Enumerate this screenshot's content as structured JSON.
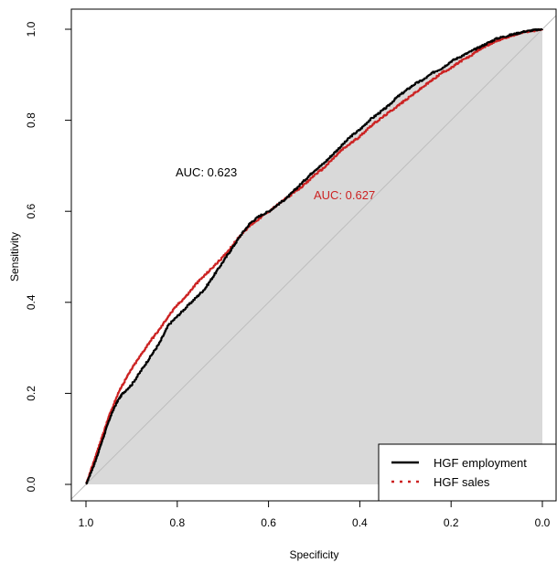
{
  "chart_data": {
    "type": "line",
    "title": "",
    "xlabel": "Specificity",
    "ylabel": "Sensitivity",
    "x_reversed": true,
    "xlim": [
      1.0,
      0.0
    ],
    "ylim": [
      0.0,
      1.0
    ],
    "x_ticks": [
      "1.0",
      "0.8",
      "0.6",
      "0.4",
      "0.2",
      "0.0"
    ],
    "y_ticks": [
      "0.0",
      "0.2",
      "0.4",
      "0.6",
      "0.8",
      "1.0"
    ],
    "grid": false,
    "legend_position": "bottom-right",
    "diagonal_reference_line": true,
    "shaded_auc": true,
    "series": [
      {
        "name": "HGF employment",
        "color": "#000000",
        "line": "solid",
        "auc_label": "AUC: 0.623",
        "points": [
          [
            1.0,
            0.0
          ],
          [
            0.99,
            0.025
          ],
          [
            0.98,
            0.05
          ],
          [
            0.97,
            0.08
          ],
          [
            0.96,
            0.11
          ],
          [
            0.95,
            0.14
          ],
          [
            0.94,
            0.165
          ],
          [
            0.93,
            0.185
          ],
          [
            0.92,
            0.2
          ],
          [
            0.9,
            0.22
          ],
          [
            0.88,
            0.25
          ],
          [
            0.86,
            0.28
          ],
          [
            0.84,
            0.31
          ],
          [
            0.82,
            0.35
          ],
          [
            0.8,
            0.37
          ],
          [
            0.78,
            0.39
          ],
          [
            0.76,
            0.41
          ],
          [
            0.74,
            0.43
          ],
          [
            0.72,
            0.46
          ],
          [
            0.7,
            0.49
          ],
          [
            0.68,
            0.52
          ],
          [
            0.66,
            0.55
          ],
          [
            0.64,
            0.575
          ],
          [
            0.62,
            0.59
          ],
          [
            0.6,
            0.6
          ],
          [
            0.58,
            0.615
          ],
          [
            0.56,
            0.63
          ],
          [
            0.54,
            0.65
          ],
          [
            0.52,
            0.67
          ],
          [
            0.5,
            0.69
          ],
          [
            0.48,
            0.705
          ],
          [
            0.46,
            0.725
          ],
          [
            0.44,
            0.745
          ],
          [
            0.42,
            0.765
          ],
          [
            0.4,
            0.78
          ],
          [
            0.38,
            0.8
          ],
          [
            0.36,
            0.815
          ],
          [
            0.34,
            0.83
          ],
          [
            0.32,
            0.85
          ],
          [
            0.3,
            0.865
          ],
          [
            0.28,
            0.88
          ],
          [
            0.26,
            0.89
          ],
          [
            0.24,
            0.905
          ],
          [
            0.22,
            0.915
          ],
          [
            0.2,
            0.93
          ],
          [
            0.18,
            0.94
          ],
          [
            0.16,
            0.95
          ],
          [
            0.14,
            0.96
          ],
          [
            0.12,
            0.97
          ],
          [
            0.1,
            0.98
          ],
          [
            0.08,
            0.985
          ],
          [
            0.06,
            0.99
          ],
          [
            0.04,
            0.995
          ],
          [
            0.02,
            0.998
          ],
          [
            0.0,
            1.0
          ]
        ]
      },
      {
        "name": "HGF sales",
        "color": "#cc2222",
        "line": "dotted",
        "auc_label": "AUC: 0.627",
        "points": [
          [
            1.0,
            0.0
          ],
          [
            0.99,
            0.03
          ],
          [
            0.98,
            0.06
          ],
          [
            0.97,
            0.09
          ],
          [
            0.96,
            0.12
          ],
          [
            0.95,
            0.15
          ],
          [
            0.94,
            0.175
          ],
          [
            0.93,
            0.2
          ],
          [
            0.92,
            0.22
          ],
          [
            0.9,
            0.255
          ],
          [
            0.88,
            0.285
          ],
          [
            0.86,
            0.315
          ],
          [
            0.84,
            0.34
          ],
          [
            0.82,
            0.37
          ],
          [
            0.8,
            0.395
          ],
          [
            0.78,
            0.415
          ],
          [
            0.76,
            0.44
          ],
          [
            0.74,
            0.46
          ],
          [
            0.72,
            0.48
          ],
          [
            0.7,
            0.5
          ],
          [
            0.68,
            0.525
          ],
          [
            0.66,
            0.55
          ],
          [
            0.64,
            0.57
          ],
          [
            0.62,
            0.585
          ],
          [
            0.6,
            0.6
          ],
          [
            0.58,
            0.615
          ],
          [
            0.56,
            0.63
          ],
          [
            0.54,
            0.645
          ],
          [
            0.52,
            0.66
          ],
          [
            0.5,
            0.68
          ],
          [
            0.48,
            0.695
          ],
          [
            0.46,
            0.715
          ],
          [
            0.44,
            0.735
          ],
          [
            0.42,
            0.75
          ],
          [
            0.4,
            0.765
          ],
          [
            0.38,
            0.785
          ],
          [
            0.36,
            0.8
          ],
          [
            0.34,
            0.815
          ],
          [
            0.32,
            0.83
          ],
          [
            0.3,
            0.845
          ],
          [
            0.28,
            0.86
          ],
          [
            0.26,
            0.875
          ],
          [
            0.24,
            0.89
          ],
          [
            0.22,
            0.905
          ],
          [
            0.2,
            0.915
          ],
          [
            0.18,
            0.93
          ],
          [
            0.16,
            0.94
          ],
          [
            0.14,
            0.955
          ],
          [
            0.12,
            0.965
          ],
          [
            0.1,
            0.975
          ],
          [
            0.08,
            0.982
          ],
          [
            0.06,
            0.988
          ],
          [
            0.04,
            0.994
          ],
          [
            0.02,
            0.997
          ],
          [
            0.0,
            1.0
          ]
        ]
      }
    ]
  },
  "colors": {
    "shade": "#d9d9d9",
    "diagonal": "#bdbdbd",
    "frame": "#000000"
  }
}
